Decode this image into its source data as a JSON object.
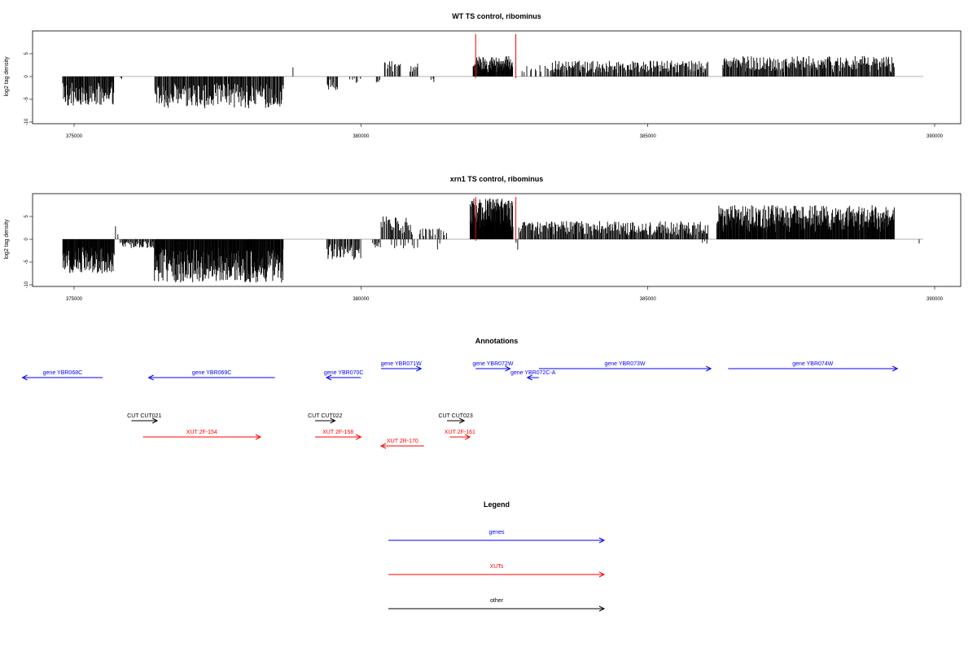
{
  "chart_data": [
    {
      "type": "bar",
      "title": "WT TS control, ribominus",
      "ylabel": "log2 tag density",
      "xlabel": "",
      "xlim": [
        374700,
        390500
      ],
      "ylim": [
        -10,
        10
      ],
      "grid": false,
      "x_ticks": [
        375000,
        380000,
        385000,
        390000
      ],
      "x_tick_labels": [
        "375000",
        "380000",
        "385000",
        "390000"
      ],
      "y_ticks": [
        -10,
        -5,
        0,
        5
      ],
      "y_tick_labels": [
        "-10",
        "-5",
        "0",
        "5"
      ],
      "baseline_range": [
        374800,
        389800
      ],
      "highlight_x": [
        382000,
        382700
      ],
      "highlight_color": "#ff0000",
      "bar_color": "#000000",
      "regions": [
        {
          "start": 374800,
          "end": 375700,
          "sign": -1,
          "max": 6.5,
          "n": 85
        },
        {
          "start": 375800,
          "end": 375850,
          "sign": -1,
          "max": 1.5,
          "n": 2
        },
        {
          "start": 376400,
          "end": 378650,
          "sign": -1,
          "max": 7.0,
          "n": 190
        },
        {
          "start": 378800,
          "end": 378830,
          "sign": 1,
          "max": 3.0,
          "n": 1
        },
        {
          "start": 379400,
          "end": 379600,
          "sign": -1,
          "max": 3.0,
          "n": 12
        },
        {
          "start": 379800,
          "end": 380000,
          "sign": -1,
          "max": 1.5,
          "n": 6
        },
        {
          "start": 380250,
          "end": 380350,
          "sign": -1,
          "max": 1.5,
          "n": 4
        },
        {
          "start": 380400,
          "end": 380700,
          "sign": 1,
          "max": 3.5,
          "n": 14
        },
        {
          "start": 380850,
          "end": 381000,
          "sign": 1,
          "max": 3.0,
          "n": 8
        },
        {
          "start": 381200,
          "end": 381300,
          "sign": -1,
          "max": 1.5,
          "n": 3
        },
        {
          "start": 381950,
          "end": 382650,
          "sign": 1,
          "max": 4.5,
          "n": 90
        },
        {
          "start": 382800,
          "end": 383300,
          "sign": 1,
          "max": 2.5,
          "n": 12
        },
        {
          "start": 383300,
          "end": 386050,
          "sign": 1,
          "max": 3.5,
          "n": 190
        },
        {
          "start": 386300,
          "end": 389300,
          "sign": 1,
          "max": 4.5,
          "n": 230
        }
      ]
    },
    {
      "type": "bar",
      "title": "xrn1 TS control, ribominus",
      "ylabel": "log2 tag density",
      "xlabel": "",
      "xlim": [
        374700,
        390500
      ],
      "ylim": [
        -10,
        10
      ],
      "grid": false,
      "x_ticks": [
        375000,
        380000,
        385000,
        390000
      ],
      "x_tick_labels": [
        "375000",
        "380000",
        "385000",
        "390000"
      ],
      "y_ticks": [
        -10,
        -5,
        0,
        5
      ],
      "y_tick_labels": [
        "-10",
        "-5",
        "0",
        "5"
      ],
      "baseline_range": [
        374800,
        389800
      ],
      "highlight_x": [
        382000,
        382700
      ],
      "highlight_color": "#ff0000",
      "bar_color": "#000000",
      "regions": [
        {
          "start": 374800,
          "end": 375700,
          "sign": -1,
          "max": 7.5,
          "n": 120
        },
        {
          "start": 375700,
          "end": 375800,
          "sign": 1,
          "max": 3.0,
          "n": 2
        },
        {
          "start": 375800,
          "end": 376400,
          "sign": -1,
          "max": 2.0,
          "n": 40
        },
        {
          "start": 376400,
          "end": 378650,
          "sign": -1,
          "max": 9.5,
          "n": 280
        },
        {
          "start": 379400,
          "end": 380000,
          "sign": -1,
          "max": 4.5,
          "n": 40
        },
        {
          "start": 380200,
          "end": 380350,
          "sign": -1,
          "max": 2.0,
          "n": 8
        },
        {
          "start": 380350,
          "end": 380900,
          "sign": 1,
          "max": 5.0,
          "n": 35
        },
        {
          "start": 380500,
          "end": 381000,
          "sign": -1,
          "max": 2.0,
          "n": 10
        },
        {
          "start": 381000,
          "end": 381500,
          "sign": 1,
          "max": 3.0,
          "n": 18
        },
        {
          "start": 381300,
          "end": 381400,
          "sign": -1,
          "max": 2.5,
          "n": 2
        },
        {
          "start": 381900,
          "end": 382650,
          "sign": 1,
          "max": 9.0,
          "n": 130
        },
        {
          "start": 382700,
          "end": 382750,
          "sign": -1,
          "max": 3.0,
          "n": 2
        },
        {
          "start": 382750,
          "end": 386050,
          "sign": 1,
          "max": 4.0,
          "n": 240
        },
        {
          "start": 385950,
          "end": 386050,
          "sign": -1,
          "max": 2.0,
          "n": 3
        },
        {
          "start": 386200,
          "end": 389300,
          "sign": 1,
          "max": 7.5,
          "n": 380
        },
        {
          "start": 389700,
          "end": 389760,
          "sign": -1,
          "max": 1.5,
          "n": 1
        }
      ]
    },
    {
      "type": "annotation-track",
      "title": "Annotations",
      "xlim": [
        374700,
        390500
      ],
      "features": [
        {
          "label": "gene YBR068C",
          "start": 374100,
          "end": 375500,
          "strand": "-",
          "category": "genes",
          "row": 1
        },
        {
          "label": "gene YBR069C",
          "start": 376300,
          "end": 378500,
          "strand": "-",
          "category": "genes",
          "row": 1
        },
        {
          "label": "gene YBR070C",
          "start": 379400,
          "end": 380000,
          "strand": "-",
          "category": "genes",
          "row": 1
        },
        {
          "label": "gene YBR071W",
          "start": 380350,
          "end": 381050,
          "strand": "+",
          "category": "genes",
          "row": 0
        },
        {
          "label": "gene YBR072W",
          "start": 382000,
          "end": 382600,
          "strand": "+",
          "category": "genes",
          "row": 0
        },
        {
          "label": "gene YBR072C-A",
          "start": 382900,
          "end": 383100,
          "strand": "-",
          "category": "genes",
          "row": 1
        },
        {
          "label": "gene YBR073W",
          "start": 383100,
          "end": 386100,
          "strand": "+",
          "category": "genes",
          "row": 0
        },
        {
          "label": "gene YBR074W",
          "start": 386400,
          "end": 389350,
          "strand": "+",
          "category": "genes",
          "row": 0
        },
        {
          "label": "CUT CUT021",
          "start": 376000,
          "end": 376450,
          "strand": "+",
          "category": "other",
          "row": 2
        },
        {
          "label": "CUT CUT022",
          "start": 379200,
          "end": 379550,
          "strand": "+",
          "category": "other",
          "row": 2
        },
        {
          "label": "CUT CUT023",
          "start": 381500,
          "end": 381800,
          "strand": "+",
          "category": "other",
          "row": 2
        },
        {
          "label": "XUT 2F-154",
          "start": 376200,
          "end": 378250,
          "strand": "+",
          "category": "XUTs",
          "row": 3
        },
        {
          "label": "XUT 2F-158",
          "start": 379200,
          "end": 380000,
          "strand": "+",
          "category": "XUTs",
          "row": 3
        },
        {
          "label": "XUT 2R-170",
          "start": 380350,
          "end": 381100,
          "strand": "-",
          "category": "XUTs",
          "row": 4
        },
        {
          "label": "XUT 2F-161",
          "start": 381550,
          "end": 381900,
          "strand": "+",
          "category": "XUTs",
          "row": 3
        }
      ]
    },
    {
      "type": "legend",
      "title": "Legend",
      "entries": [
        {
          "label": "genes",
          "color": "#0000ff"
        },
        {
          "label": "XUTs",
          "color": "#ff0000"
        },
        {
          "label": "other",
          "color": "#000000"
        }
      ]
    }
  ]
}
